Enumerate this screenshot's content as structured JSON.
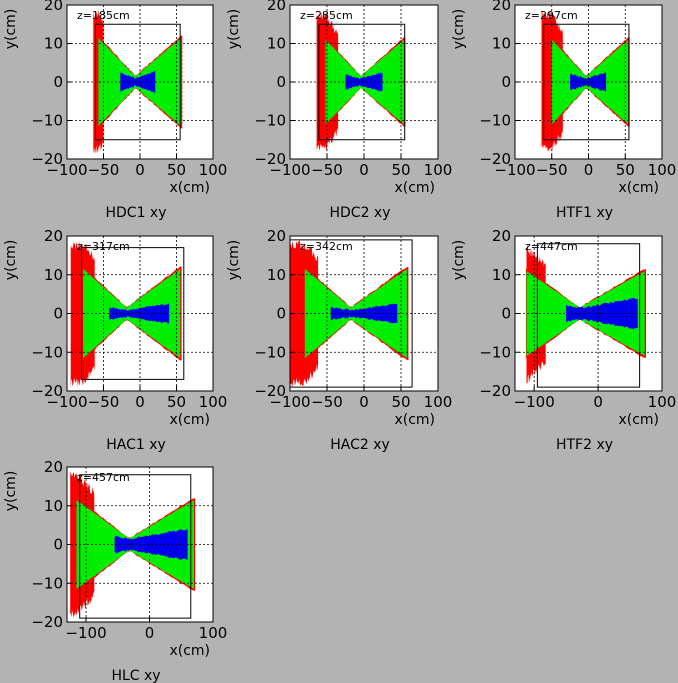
{
  "figure_background": "#b3b3b3",
  "colors": {
    "red": "#ff0000",
    "green": "#00ee00",
    "blue": "#0000ee",
    "frame": "#000000",
    "plot_bg": "#ffffff"
  },
  "chart_data": [
    {
      "type": "scatter",
      "panel": "HDC1",
      "caption": "HDC1 xy",
      "z_label": "z=185cm",
      "xlabel": "x(cm)",
      "ylabel": "y(cm)",
      "xlim": [
        -100,
        100
      ],
      "ylim": [
        -20,
        20
      ],
      "xticks": [
        -100,
        -50,
        0,
        50,
        100
      ],
      "yticks": [
        -20,
        -10,
        0,
        10,
        20
      ],
      "grid": true,
      "rect": {
        "x": [
          -61,
          55
        ],
        "y": [
          -15,
          15
        ]
      },
      "regions": {
        "red_x": [
          -64,
          -50
        ],
        "green_x": [
          -57,
          56
        ],
        "green_halfheight_edges": 11.4,
        "green_halfheight_center": 1.5,
        "blue_x": [
          -27,
          21
        ],
        "blue_halfheight": 2.8
      }
    },
    {
      "type": "scatter",
      "panel": "HDC2",
      "caption": "HDC2 xy",
      "z_label": "z=285cm",
      "xlabel": "x(cm)",
      "ylabel": "y(cm)",
      "xlim": [
        -100,
        100
      ],
      "ylim": [
        -20,
        20
      ],
      "xticks": [
        -100,
        -50,
        0,
        50,
        100
      ],
      "yticks": [
        -20,
        -10,
        0,
        10,
        20
      ],
      "grid": true,
      "rect": {
        "x": [
          -61,
          55
        ],
        "y": [
          -15,
          15
        ]
      },
      "regions": {
        "red_x": [
          -64,
          -35
        ],
        "green_x": [
          -52,
          54
        ],
        "green_halfheight_edges": 11.0,
        "green_halfheight_center": 1.5,
        "blue_x": [
          -25,
          25
        ],
        "blue_halfheight": 2.5
      }
    },
    {
      "type": "scatter",
      "panel": "HTF1",
      "caption": "HTF1 xy",
      "z_label": "z=297cm",
      "xlabel": "x(cm)",
      "ylabel": "y(cm)",
      "xlim": [
        -100,
        100
      ],
      "ylim": [
        -20,
        20
      ],
      "xticks": [
        -100,
        -50,
        0,
        50,
        100
      ],
      "yticks": [
        -20,
        -10,
        0,
        10,
        20
      ],
      "grid": true,
      "rect": {
        "x": [
          -61,
          55
        ],
        "y": [
          -15,
          15
        ]
      },
      "regions": {
        "red_x": [
          -64,
          -35
        ],
        "green_x": [
          -50,
          54
        ],
        "green_halfheight_edges": 11.0,
        "green_halfheight_center": 1.5,
        "blue_x": [
          -25,
          24
        ],
        "blue_halfheight": 2.5
      }
    },
    {
      "type": "scatter",
      "panel": "HAC1",
      "caption": "HAC1 xy",
      "z_label": "z=317cm",
      "xlabel": "x(cm)",
      "ylabel": "y(cm)",
      "xlim": [
        -100,
        100
      ],
      "ylim": [
        -20,
        20
      ],
      "xticks": [
        -100,
        -50,
        0,
        50,
        100
      ],
      "yticks": [
        -20,
        -10,
        0,
        10,
        20
      ],
      "grid": true,
      "rect": {
        "x": [
          -80,
          60
        ],
        "y": [
          -17,
          17
        ]
      },
      "regions": {
        "red_x": [
          -95,
          -62
        ],
        "green_x": [
          -78,
          55
        ],
        "green_halfheight_edges": 11.5,
        "green_halfheight_center": 1.5,
        "blue_x": [
          -42,
          40
        ],
        "blue_halfheight": 2.5
      }
    },
    {
      "type": "scatter",
      "panel": "HAC2",
      "caption": "HAC2 xy",
      "z_label": "z=342cm",
      "xlabel": "x(cm)",
      "ylabel": "y(cm)",
      "xlim": [
        -100,
        100
      ],
      "ylim": [
        -20,
        20
      ],
      "xticks": [
        -100,
        -50,
        0,
        50,
        100
      ],
      "yticks": [
        -20,
        -10,
        0,
        10,
        20
      ],
      "grid": true,
      "rect": {
        "x": [
          -100,
          65
        ],
        "y": [
          -19,
          19
        ]
      },
      "regions": {
        "red_x": [
          -100,
          -62
        ],
        "green_x": [
          -80,
          58
        ],
        "green_halfheight_edges": 11.5,
        "green_halfheight_center": 1.5,
        "blue_x": [
          -45,
          45
        ],
        "blue_halfheight": 2.5
      }
    },
    {
      "type": "scatter",
      "panel": "HTF2",
      "caption": "HTF2 xy",
      "z_label": "z=447cm",
      "xlabel": "x(cm)",
      "ylabel": "y(cm)",
      "xlim": [
        -130,
        100
      ],
      "ylim": [
        -20,
        20
      ],
      "xticks": [
        -100,
        0,
        100
      ],
      "yticks": [
        -20,
        -10,
        0,
        10,
        20
      ],
      "grid": true,
      "rect": {
        "x": [
          -95,
          65
        ],
        "y": [
          -19,
          18
        ]
      },
      "regions": {
        "red_x": [
          -112,
          -82
        ],
        "green_x": [
          -112,
          73
        ],
        "green_halfheight_edges": 11.0,
        "green_halfheight_center": 1.5,
        "blue_x": [
          -50,
          62
        ],
        "blue_halfheight": 4.0
      }
    },
    {
      "type": "scatter",
      "panel": "HLC",
      "caption": "HLC  xy",
      "z_label": "z=457cm",
      "xlabel": "x(cm)",
      "ylabel": "y(cm)",
      "xlim": [
        -130,
        100
      ],
      "ylim": [
        -20,
        20
      ],
      "xticks": [
        -100,
        0,
        100
      ],
      "yticks": [
        -20,
        -10,
        0,
        10,
        20
      ],
      "grid": true,
      "rect": {
        "x": [
          -110,
          65
        ],
        "y": [
          -19,
          18
        ]
      },
      "regions": {
        "red_x": [
          -125,
          -87
        ],
        "green_x": [
          -115,
          70
        ],
        "green_halfheight_edges": 11.5,
        "green_halfheight_center": 1.5,
        "blue_x": [
          -55,
          60
        ],
        "blue_halfheight": 4.0
      }
    }
  ]
}
